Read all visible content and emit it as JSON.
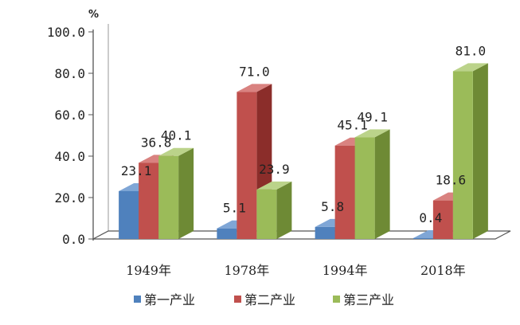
{
  "chart_data": {
    "type": "bar",
    "unit": "%",
    "categories": [
      "1949年",
      "1978年",
      "1994年",
      "2018年"
    ],
    "series": [
      {
        "name": "第一产业",
        "values": [
          23.1,
          5.1,
          5.8,
          0.4
        ],
        "labels": [
          "23.1",
          "5.1",
          "5.8",
          "0.4"
        ]
      },
      {
        "name": "第二产业",
        "values": [
          36.8,
          71.0,
          45.1,
          18.6
        ],
        "labels": [
          "36.8",
          "71.0",
          "45.1",
          "18.6"
        ]
      },
      {
        "name": "第三产业",
        "values": [
          40.1,
          23.9,
          49.1,
          81.0
        ],
        "labels": [
          "40.1",
          "23.9",
          "49.1",
          "81.0"
        ]
      }
    ],
    "yticks": [
      "0.0",
      "20.0",
      "40.0",
      "60.0",
      "80.0",
      "100.0"
    ],
    "ylim": [
      0,
      100
    ],
    "legend_position": "bottom",
    "style": "3d-column",
    "grid": false,
    "colors": {
      "第一产业": {
        "front": "#4F81BD",
        "side": "#2E5A8E",
        "top": "#7FA6D6"
      },
      "第二产业": {
        "front": "#C0504D",
        "side": "#8B2D2A",
        "top": "#D98280"
      },
      "第三产业": {
        "front": "#9BBB59",
        "side": "#6E8A35",
        "top": "#BBD38A"
      }
    }
  }
}
